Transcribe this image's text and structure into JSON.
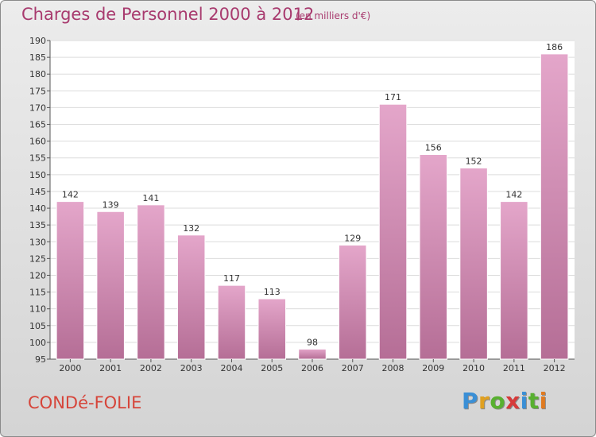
{
  "chart_data": {
    "type": "bar",
    "title": "Charges de Personnel 2000 à 2012",
    "subtitle": "(en milliers d'€)",
    "categories": [
      "2000",
      "2001",
      "2002",
      "2003",
      "2004",
      "2005",
      "2006",
      "2007",
      "2008",
      "2009",
      "2010",
      "2011",
      "2012"
    ],
    "values": [
      142,
      139,
      141,
      132,
      117,
      113,
      98,
      129,
      171,
      156,
      152,
      142,
      186
    ],
    "ylim": [
      95,
      190
    ],
    "yticks": [
      95,
      100,
      105,
      110,
      115,
      120,
      125,
      130,
      135,
      140,
      145,
      150,
      155,
      160,
      165,
      170,
      175,
      180,
      185,
      190
    ],
    "grid": true,
    "bar_color": "#d48ab4"
  },
  "footer": {
    "place": "CONDé-FOLIE",
    "logo": [
      "P",
      "r",
      "o",
      "x",
      "i",
      "t",
      "i"
    ],
    "logo_colors": [
      "#3a8fd6",
      "#e0a020",
      "#58b030",
      "#d63a3a",
      "#3a8fd6",
      "#58b030",
      "#e07a20"
    ]
  }
}
